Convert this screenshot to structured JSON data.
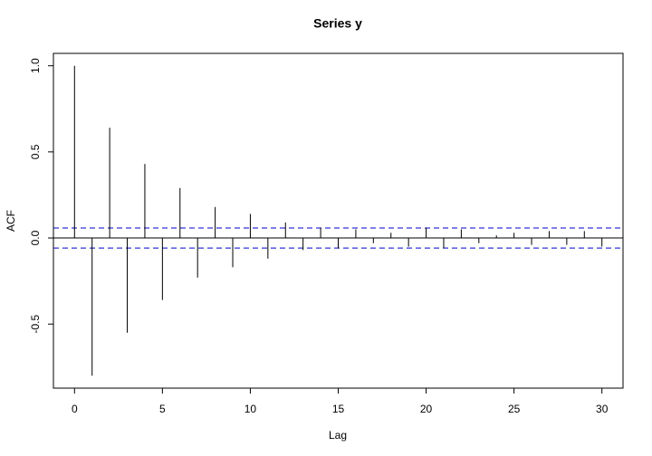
{
  "chart_data": {
    "type": "stem",
    "title": "Series  y",
    "x_label": "Lag",
    "y_label": "ACF",
    "x": [
      0,
      1,
      2,
      3,
      4,
      5,
      6,
      7,
      8,
      9,
      10,
      11,
      12,
      13,
      14,
      15,
      16,
      17,
      18,
      19,
      20,
      21,
      22,
      23,
      24,
      25,
      26,
      27,
      28,
      29,
      30
    ],
    "values": [
      1.0,
      -0.8,
      0.64,
      -0.55,
      0.43,
      -0.36,
      0.29,
      -0.23,
      0.18,
      -0.17,
      0.14,
      -0.12,
      0.09,
      -0.07,
      0.06,
      -0.06,
      0.05,
      -0.03,
      0.03,
      -0.05,
      0.06,
      -0.06,
      0.05,
      -0.03,
      0.015,
      0.03,
      -0.04,
      0.04,
      -0.04,
      0.04,
      -0.05
    ],
    "color": "#000000",
    "confidence_bound": 0.058,
    "confidence_color": "#0000cc",
    "xlim": [
      -1.2,
      31.2
    ],
    "ylim": [
      -0.872,
      1.072
    ],
    "xticks": [
      0,
      5,
      10,
      15,
      20,
      25,
      30
    ],
    "yticks": [
      -0.5,
      {
        "value": 0,
        "label": "0.0"
      },
      0.5,
      {
        "value": 1,
        "label": "1.0"
      }
    ]
  }
}
